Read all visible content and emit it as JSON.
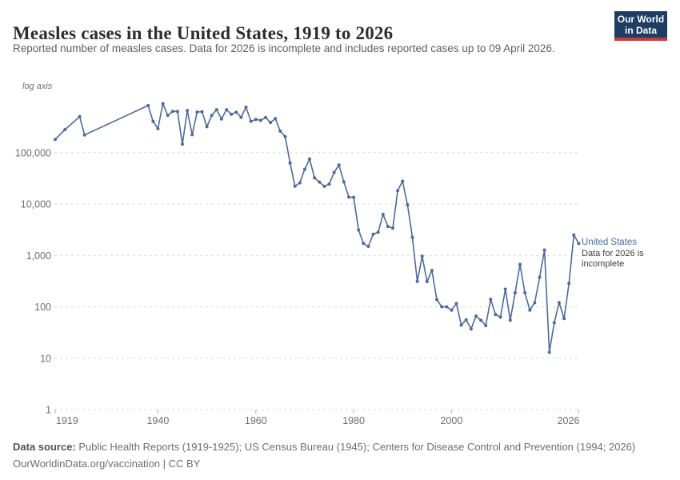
{
  "header": {
    "title": "Measles cases in the United States, 1919 to 2026",
    "subtitle": "Reported number of measles cases. Data for 2026 is incomplete and includes reported cases up to 09 April 2026.",
    "logo_line1": "Our World",
    "logo_line2": "in Data"
  },
  "chart_data": {
    "type": "line",
    "title": "Measles cases in the United States, 1919 to 2026",
    "scale_note": "log axis",
    "xlabel": "",
    "ylabel": "",
    "xlim": [
      1919,
      2026
    ],
    "ylim": [
      1,
      1500000
    ],
    "grid": true,
    "x_ticks": [
      1919,
      1940,
      1960,
      1980,
      2000,
      2026
    ],
    "y_ticks": [
      {
        "value": 1,
        "label": "1"
      },
      {
        "value": 10,
        "label": "10"
      },
      {
        "value": 100,
        "label": "100"
      },
      {
        "value": 1000,
        "label": "1,000"
      },
      {
        "value": 10000,
        "label": "10,000"
      },
      {
        "value": 100000,
        "label": "100,000"
      }
    ],
    "series": [
      {
        "name": "United States",
        "color": "#4c6a9c",
        "points": [
          [
            1919,
            180000
          ],
          [
            1921,
            280000
          ],
          [
            1924,
            500000
          ],
          [
            1925,
            220000
          ],
          [
            1938,
            822811
          ],
          [
            1939,
            404590
          ],
          [
            1940,
            291162
          ],
          [
            1941,
            894134
          ],
          [
            1942,
            527641
          ],
          [
            1943,
            633627
          ],
          [
            1944,
            630291
          ],
          [
            1945,
            146013
          ],
          [
            1946,
            659843
          ],
          [
            1947,
            222375
          ],
          [
            1948,
            615104
          ],
          [
            1949,
            625281
          ],
          [
            1950,
            319124
          ],
          [
            1951,
            530118
          ],
          [
            1952,
            683077
          ],
          [
            1953,
            449146
          ],
          [
            1954,
            682720
          ],
          [
            1955,
            555156
          ],
          [
            1956,
            611936
          ],
          [
            1957,
            486799
          ],
          [
            1958,
            763094
          ],
          [
            1959,
            406162
          ],
          [
            1960,
            441703
          ],
          [
            1961,
            423919
          ],
          [
            1962,
            481530
          ],
          [
            1963,
            385156
          ],
          [
            1964,
            458083
          ],
          [
            1965,
            261904
          ],
          [
            1966,
            204136
          ],
          [
            1967,
            62705
          ],
          [
            1968,
            22231
          ],
          [
            1969,
            25826
          ],
          [
            1970,
            47351
          ],
          [
            1971,
            75290
          ],
          [
            1972,
            32275
          ],
          [
            1973,
            26690
          ],
          [
            1974,
            22094
          ],
          [
            1975,
            24374
          ],
          [
            1976,
            41126
          ],
          [
            1977,
            57345
          ],
          [
            1978,
            26871
          ],
          [
            1979,
            13597
          ],
          [
            1980,
            13506
          ],
          [
            1981,
            3124
          ],
          [
            1982,
            1714
          ],
          [
            1983,
            1497
          ],
          [
            1984,
            2587
          ],
          [
            1985,
            2822
          ],
          [
            1986,
            6282
          ],
          [
            1987,
            3655
          ],
          [
            1988,
            3396
          ],
          [
            1989,
            18193
          ],
          [
            1990,
            27786
          ],
          [
            1991,
            9643
          ],
          [
            1992,
            2237
          ],
          [
            1993,
            312
          ],
          [
            1994,
            963
          ],
          [
            1995,
            309
          ],
          [
            1996,
            508
          ],
          [
            1997,
            138
          ],
          [
            1998,
            100
          ],
          [
            1999,
            100
          ],
          [
            2000,
            86
          ],
          [
            2001,
            116
          ],
          [
            2002,
            44
          ],
          [
            2003,
            56
          ],
          [
            2004,
            37
          ],
          [
            2005,
            66
          ],
          [
            2006,
            55
          ],
          [
            2007,
            43
          ],
          [
            2008,
            140
          ],
          [
            2009,
            71
          ],
          [
            2010,
            63
          ],
          [
            2011,
            220
          ],
          [
            2012,
            55
          ],
          [
            2013,
            187
          ],
          [
            2014,
            667
          ],
          [
            2015,
            188
          ],
          [
            2016,
            86
          ],
          [
            2017,
            120
          ],
          [
            2018,
            375
          ],
          [
            2019,
            1274
          ],
          [
            2020,
            13
          ],
          [
            2021,
            49
          ],
          [
            2022,
            121
          ],
          [
            2023,
            59
          ],
          [
            2024,
            285
          ],
          [
            2025,
            2500
          ],
          [
            2026,
            1700
          ]
        ]
      }
    ],
    "annotations": {
      "series_label": "United States",
      "note": "Data for 2026 is incomplete"
    },
    "legend_position": "right-of-line-end"
  },
  "footer": {
    "datasource_label": "Data source:",
    "datasource_text": " Public Health Reports (1919-1925); US Census Bureau (1945); Centers for Disease Control and Prevention (1994; 2026)",
    "link": "OurWorldinData.org/vaccination",
    "separator": " | ",
    "license": "CC BY"
  },
  "colors": {
    "line": "#4c6a9c",
    "gridline": "#d8d8d8",
    "axis_text": "#6e6e6e",
    "logo_bg": "#1d3d63",
    "logo_bar": "#c53d3d"
  }
}
